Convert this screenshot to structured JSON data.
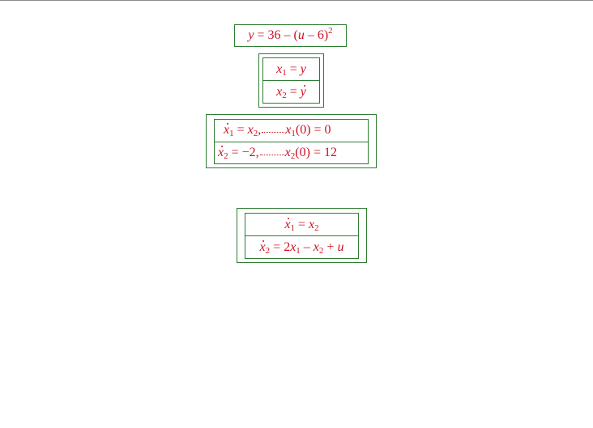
{
  "equations": {
    "output": {
      "lhs": "y",
      "eq": "=",
      "const": "36",
      "minus": "–",
      "lparen": "(",
      "var": "u",
      "minus2": "–",
      "num": "6",
      "rparen": ")",
      "power": "2"
    },
    "states": [
      {
        "var": "x",
        "sub": "1",
        "eq": "=",
        "rhs": "y"
      },
      {
        "var": "x",
        "sub": "2",
        "eq": "=",
        "rhs": "y"
      }
    ],
    "initial_conditions": [
      {
        "lhs_var": "x",
        "lhs_sub": "1",
        "eq": "=",
        "rhs": "x",
        "rhs_sub": "2",
        "comma": ",",
        "ic_var": "x",
        "ic_sub": "1",
        "ic_arg": "(0)",
        "ic_eq": "=",
        "ic_val": "0"
      },
      {
        "lhs_var": "x",
        "lhs_sub": "2",
        "eq": "=",
        "rhs": "−2",
        "comma": ",",
        "ic_var": "x",
        "ic_sub": "2",
        "ic_arg": "(0)",
        "ic_eq": "=",
        "ic_val": "12"
      }
    ],
    "system": [
      {
        "lhs_var": "x",
        "lhs_sub": "1",
        "eq": "=",
        "rhs_var": "x",
        "rhs_sub": "2"
      },
      {
        "lhs_var": "x",
        "lhs_sub": "2",
        "eq": "=",
        "coef": "2",
        "t1_var": "x",
        "t1_sub": "1",
        "minus": "–",
        "t2_var": "x",
        "t2_sub": "2",
        "plus": "+",
        "t3_var": "u"
      }
    ]
  },
  "colors": {
    "text": "#cc1122",
    "border": "#2e7d32",
    "rule": "#8a8a8a"
  }
}
